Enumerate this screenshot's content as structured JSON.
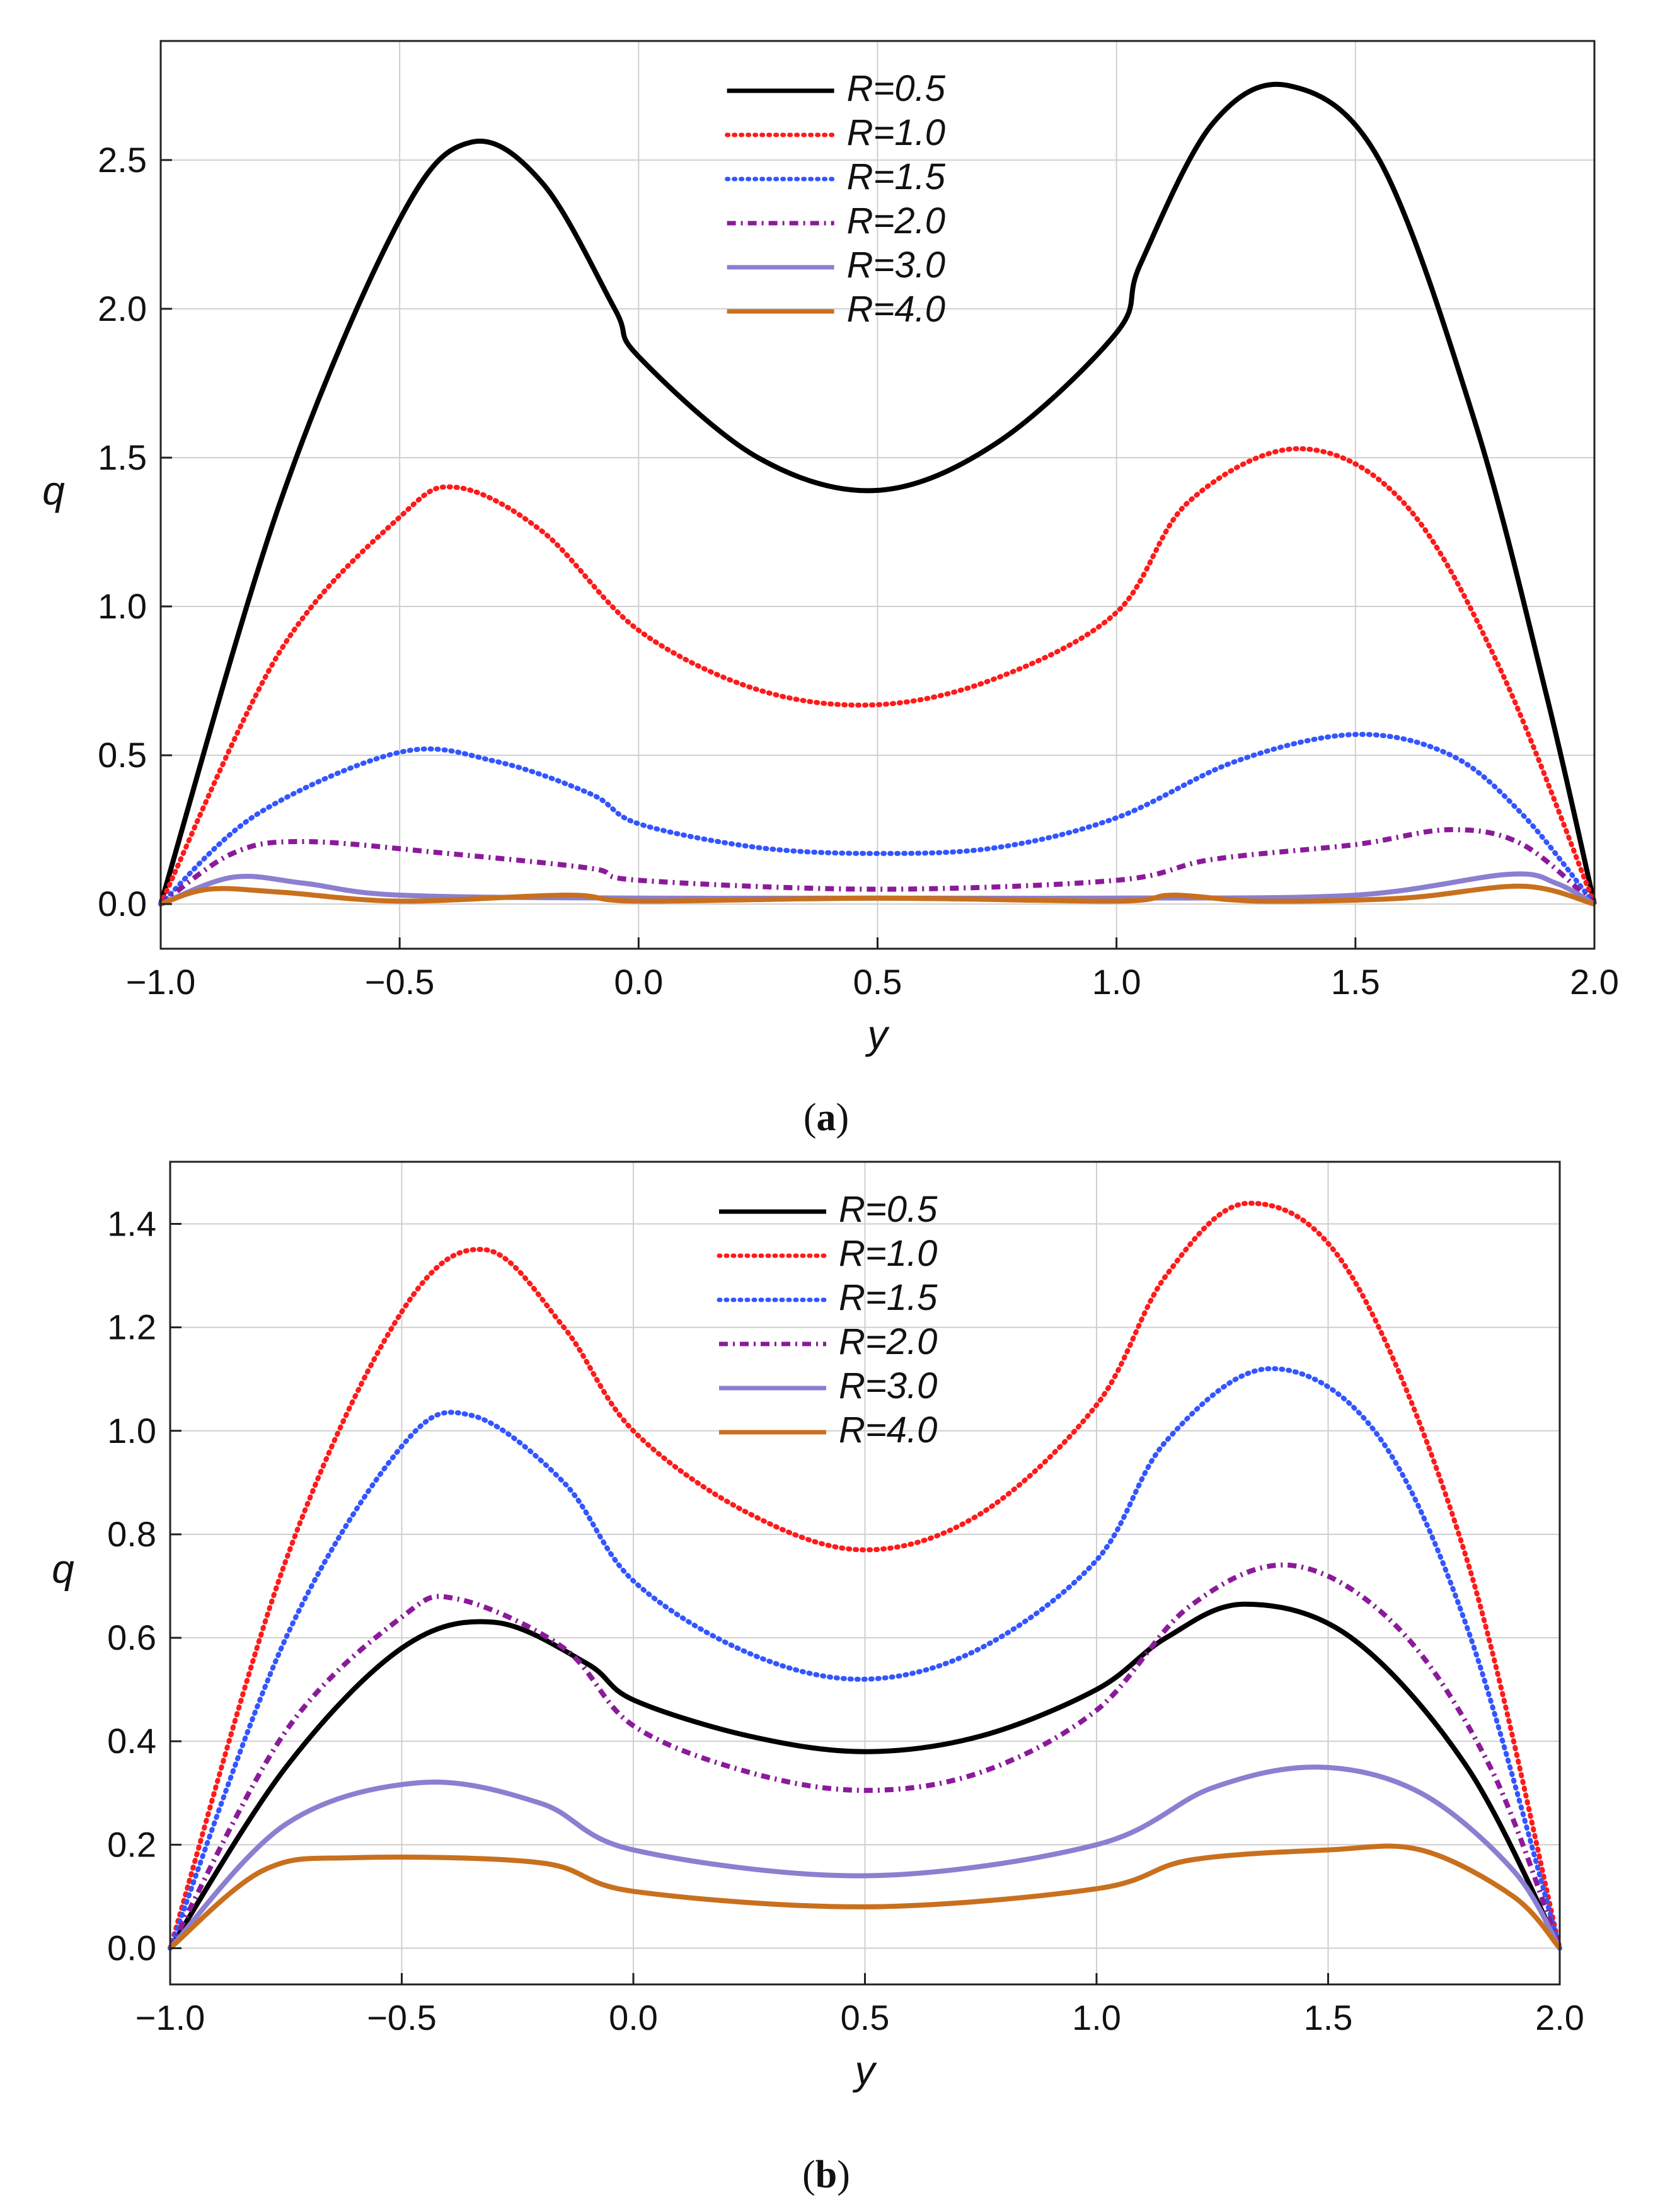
{
  "chart_data": [
    {
      "panel": "a",
      "caption_letter": "a",
      "type": "line",
      "xlabel": "y",
      "ylabel": "q",
      "xlim": [
        -1.0,
        2.0
      ],
      "ylim": [
        -0.15,
        2.9
      ],
      "xticks": [
        "-1.0",
        "-0.5",
        "0.0",
        "0.5",
        "1.0",
        "1.5",
        "2.0"
      ],
      "yticks": [
        "0.0",
        "0.5",
        "1.0",
        "1.5",
        "2.0",
        "2.5"
      ],
      "legend": "top-center",
      "grid": true,
      "series": [
        {
          "name": "R=0.5",
          "color": "#000000",
          "style": "solid",
          "points": [
            [
              -1,
              0
            ],
            [
              -0.75,
              1.35
            ],
            [
              -0.5,
              2.3
            ],
            [
              -0.35,
              2.56
            ],
            [
              -0.2,
              2.42
            ],
            [
              -0.05,
              2.0
            ],
            [
              0,
              1.84
            ],
            [
              0.25,
              1.5
            ],
            [
              0.5,
              1.39
            ],
            [
              0.75,
              1.55
            ],
            [
              1,
              1.92
            ],
            [
              1.05,
              2.15
            ],
            [
              1.2,
              2.62
            ],
            [
              1.36,
              2.75
            ],
            [
              1.55,
              2.5
            ],
            [
              1.75,
              1.62
            ],
            [
              1.9,
              0.7
            ],
            [
              2,
              0
            ]
          ]
        },
        {
          "name": "R=1.0",
          "color": "#ff1a1a",
          "style": "dotted",
          "points": [
            [
              -1,
              0
            ],
            [
              -0.75,
              0.85
            ],
            [
              -0.5,
              1.3
            ],
            [
              -0.38,
              1.4
            ],
            [
              -0.2,
              1.25
            ],
            [
              0,
              0.92
            ],
            [
              0.25,
              0.72
            ],
            [
              0.5,
              0.67
            ],
            [
              0.75,
              0.76
            ],
            [
              1,
              0.98
            ],
            [
              1.15,
              1.35
            ],
            [
              1.38,
              1.53
            ],
            [
              1.6,
              1.35
            ],
            [
              1.8,
              0.8
            ],
            [
              2,
              0
            ]
          ]
        },
        {
          "name": "R=1.5",
          "color": "#3355ff",
          "style": "dotted",
          "points": [
            [
              -1,
              0
            ],
            [
              -0.8,
              0.3
            ],
            [
              -0.5,
              0.51
            ],
            [
              -0.3,
              0.48
            ],
            [
              -0.1,
              0.37
            ],
            [
              0,
              0.27
            ],
            [
              0.25,
              0.19
            ],
            [
              0.5,
              0.17
            ],
            [
              0.75,
              0.19
            ],
            [
              1,
              0.29
            ],
            [
              1.25,
              0.48
            ],
            [
              1.5,
              0.57
            ],
            [
              1.7,
              0.5
            ],
            [
              1.85,
              0.3
            ],
            [
              2,
              0
            ]
          ]
        },
        {
          "name": "R=2.0",
          "color": "#8b1a9a",
          "style": "dashdot",
          "points": [
            [
              -1,
              0
            ],
            [
              -0.85,
              0.17
            ],
            [
              -0.7,
              0.21
            ],
            [
              -0.4,
              0.17
            ],
            [
              -0.1,
              0.12
            ],
            [
              0,
              0.08
            ],
            [
              0.5,
              0.05
            ],
            [
              1,
              0.08
            ],
            [
              1.2,
              0.15
            ],
            [
              1.5,
              0.2
            ],
            [
              1.7,
              0.25
            ],
            [
              1.85,
              0.2
            ],
            [
              2,
              0
            ]
          ]
        },
        {
          "name": "R=3.0",
          "color": "#8a7fd0",
          "style": "solid",
          "points": [
            [
              -1,
              0
            ],
            [
              -0.85,
              0.09
            ],
            [
              -0.7,
              0.07
            ],
            [
              -0.5,
              0.03
            ],
            [
              0,
              0.02
            ],
            [
              0.5,
              0.02
            ],
            [
              1,
              0.02
            ],
            [
              1.5,
              0.03
            ],
            [
              1.82,
              0.1
            ],
            [
              1.92,
              0.07
            ],
            [
              2,
              0
            ]
          ]
        },
        {
          "name": "R=4.0",
          "color": "#c8701e",
          "style": "solid",
          "points": [
            [
              -1,
              0
            ],
            [
              -0.9,
              0.05
            ],
            [
              -0.75,
              0.04
            ],
            [
              -0.5,
              0.01
            ],
            [
              -0.15,
              0.03
            ],
            [
              0,
              0.01
            ],
            [
              0.5,
              0.02
            ],
            [
              1,
              0.01
            ],
            [
              1.12,
              0.03
            ],
            [
              1.3,
              0.01
            ],
            [
              1.6,
              0.02
            ],
            [
              1.85,
              0.06
            ],
            [
              2,
              0
            ]
          ]
        }
      ]
    },
    {
      "panel": "b",
      "caption_letter": "b",
      "type": "line",
      "xlabel": "y",
      "ylabel": "q",
      "xlim": [
        -1.0,
        2.0
      ],
      "ylim": [
        -0.07,
        1.52
      ],
      "xticks": [
        "-1.0",
        "-0.5",
        "0.0",
        "0.5",
        "1.0",
        "1.5",
        "2.0"
      ],
      "yticks": [
        "0.0",
        "0.2",
        "0.4",
        "0.6",
        "0.8",
        "1.0",
        "1.2",
        "1.4"
      ],
      "legend": "top-center",
      "grid": true,
      "series": [
        {
          "name": "R=0.5",
          "color": "#000000",
          "style": "solid",
          "points": [
            [
              -1,
              0
            ],
            [
              -0.75,
              0.35
            ],
            [
              -0.5,
              0.58
            ],
            [
              -0.3,
              0.63
            ],
            [
              -0.1,
              0.55
            ],
            [
              0,
              0.48
            ],
            [
              0.25,
              0.41
            ],
            [
              0.5,
              0.38
            ],
            [
              0.75,
              0.41
            ],
            [
              1,
              0.5
            ],
            [
              1.15,
              0.6
            ],
            [
              1.32,
              0.665
            ],
            [
              1.55,
              0.6
            ],
            [
              1.8,
              0.35
            ],
            [
              2,
              0
            ]
          ]
        },
        {
          "name": "R=1.0",
          "color": "#ff1a1a",
          "style": "dotted",
          "points": [
            [
              -1,
              0
            ],
            [
              -0.75,
              0.75
            ],
            [
              -0.5,
              1.23
            ],
            [
              -0.32,
              1.35
            ],
            [
              -0.15,
              1.2
            ],
            [
              0,
              1.0
            ],
            [
              0.25,
              0.84
            ],
            [
              0.5,
              0.77
            ],
            [
              0.75,
              0.84
            ],
            [
              1,
              1.05
            ],
            [
              1.15,
              1.3
            ],
            [
              1.33,
              1.44
            ],
            [
              1.55,
              1.3
            ],
            [
              1.8,
              0.75
            ],
            [
              2,
              0
            ]
          ]
        },
        {
          "name": "R=1.5",
          "color": "#3355ff",
          "style": "dotted",
          "points": [
            [
              -1,
              0
            ],
            [
              -0.75,
              0.6
            ],
            [
              -0.5,
              0.97
            ],
            [
              -0.35,
              1.03
            ],
            [
              -0.15,
              0.9
            ],
            [
              0,
              0.71
            ],
            [
              0.25,
              0.57
            ],
            [
              0.5,
              0.52
            ],
            [
              0.75,
              0.58
            ],
            [
              1,
              0.75
            ],
            [
              1.15,
              0.98
            ],
            [
              1.37,
              1.12
            ],
            [
              1.6,
              1.0
            ],
            [
              1.8,
              0.62
            ],
            [
              2,
              0
            ]
          ]
        },
        {
          "name": "R=2.0",
          "color": "#8b1a9a",
          "style": "dashdot",
          "points": [
            [
              -1,
              0
            ],
            [
              -0.75,
              0.42
            ],
            [
              -0.5,
              0.64
            ],
            [
              -0.38,
              0.675
            ],
            [
              -0.15,
              0.58
            ],
            [
              0,
              0.43
            ],
            [
              0.25,
              0.34
            ],
            [
              0.5,
              0.305
            ],
            [
              0.75,
              0.34
            ],
            [
              1,
              0.46
            ],
            [
              1.2,
              0.66
            ],
            [
              1.42,
              0.74
            ],
            [
              1.65,
              0.62
            ],
            [
              1.85,
              0.35
            ],
            [
              2,
              0
            ]
          ]
        },
        {
          "name": "R=3.0",
          "color": "#8a7fd0",
          "style": "solid",
          "points": [
            [
              -1,
              0
            ],
            [
              -0.75,
              0.24
            ],
            [
              -0.46,
              0.32
            ],
            [
              -0.2,
              0.28
            ],
            [
              0,
              0.19
            ],
            [
              0.5,
              0.14
            ],
            [
              1,
              0.2
            ],
            [
              1.25,
              0.31
            ],
            [
              1.48,
              0.35
            ],
            [
              1.7,
              0.3
            ],
            [
              1.9,
              0.15
            ],
            [
              2,
              0
            ]
          ]
        },
        {
          "name": "R=4.0",
          "color": "#c8701e",
          "style": "solid",
          "points": [
            [
              -1,
              0
            ],
            [
              -0.8,
              0.15
            ],
            [
              -0.6,
              0.175
            ],
            [
              -0.2,
              0.165
            ],
            [
              0,
              0.11
            ],
            [
              0.5,
              0.08
            ],
            [
              1,
              0.115
            ],
            [
              1.2,
              0.17
            ],
            [
              1.5,
              0.19
            ],
            [
              1.7,
              0.19
            ],
            [
              1.9,
              0.1
            ],
            [
              2,
              0
            ]
          ]
        }
      ]
    }
  ]
}
